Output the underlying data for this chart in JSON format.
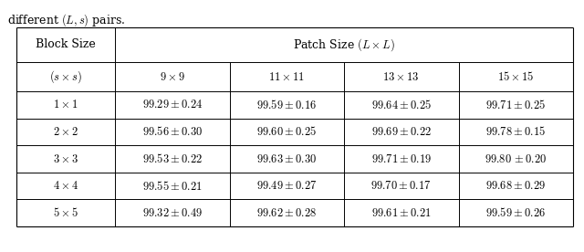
{
  "caption": "different $(L, s)$ pairs.",
  "col0_header1": "Block Size",
  "col0_header2": "$(s \\times s)$",
  "patch_header": "Patch Size $(L \\times L)$",
  "patch_cols": [
    "$9 \\times 9$",
    "$11 \\times 11$",
    "$13 \\times 13$",
    "$15 \\times 15$"
  ],
  "rows": [
    [
      "$1 \\times 1$",
      "$99.29 \\pm 0.24$",
      "$99.59 \\pm 0.16$",
      "$99.64 \\pm 0.25$",
      "$99.71 \\pm 0.25$"
    ],
    [
      "$2 \\times 2$",
      "$99.56 \\pm 0.30$",
      "$99.60 \\pm 0.25$",
      "$99.69 \\pm 0.22$",
      "$99.78 \\pm 0.15$"
    ],
    [
      "$3 \\times 3$",
      "$99.53 \\pm 0.22$",
      "$99.63 \\pm 0.30$",
      "$99.71 \\pm 0.19$",
      "BOLD:$99.80 \\pm 0.20$"
    ],
    [
      "$4 \\times 4$",
      "$99.55 \\pm 0.21$",
      "$99.49 \\pm 0.27$",
      "$99.70 \\pm 0.17$",
      "$99.68 \\pm 0.29$"
    ],
    [
      "$5 \\times 5$",
      "$99.32 \\pm 0.49$",
      "$99.62 \\pm 0.28$",
      "$99.61 \\pm 0.21$",
      "$99.59 \\pm 0.26$"
    ]
  ],
  "bg": "#ffffff",
  "line_color": "#000000",
  "font_size": 9.0,
  "font_family": "serif"
}
